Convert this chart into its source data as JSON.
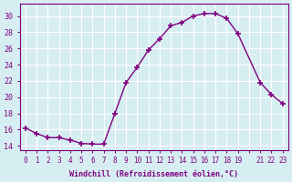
{
  "x": [
    0,
    1,
    2,
    3,
    4,
    5,
    6,
    7,
    8,
    9,
    10,
    11,
    12,
    13,
    14,
    15,
    16,
    17,
    18,
    19,
    21,
    22,
    23
  ],
  "y": [
    16.2,
    15.5,
    15.0,
    15.0,
    14.7,
    14.3,
    14.2,
    14.2,
    18.0,
    21.8,
    23.7,
    25.8,
    27.2,
    28.8,
    29.2,
    30.0,
    30.3,
    30.3,
    29.7,
    27.8,
    21.8,
    20.3,
    19.2
  ],
  "line_color": "#800080",
  "marker": "+",
  "bg_color": "#d6eef2",
  "grid_color": "#ffffff",
  "xlabel": "Windchill (Refroidissement éolien,°C)",
  "xlabel_color": "#800080",
  "tick_color": "#800080",
  "ylim": [
    13.5,
    31.5
  ],
  "yticks": [
    14,
    16,
    18,
    20,
    22,
    24,
    26,
    28,
    30
  ],
  "xlim": [
    -0.5,
    23.5
  ],
  "xticks": [
    0,
    1,
    2,
    3,
    4,
    5,
    6,
    7,
    8,
    9,
    10,
    11,
    12,
    13,
    14,
    15,
    16,
    17,
    18,
    19,
    20,
    21,
    22,
    23
  ],
  "xtick_labels": [
    "0",
    "1",
    "2",
    "3",
    "4",
    "5",
    "6",
    "7",
    "8",
    "9",
    "10",
    "11",
    "12",
    "13",
    "14",
    "15",
    "16",
    "17",
    "18",
    "19",
    "",
    "21",
    "22",
    "23"
  ]
}
